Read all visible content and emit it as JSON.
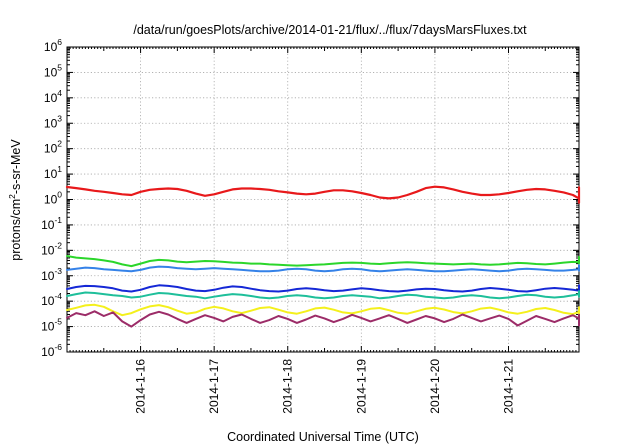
{
  "chart_data": {
    "type": "line",
    "title": "/data/run/goesPlots/archive/2014-01-21/flux/../flux/7daysMarsFluxes.txt",
    "xlabel": "Coordinated Universal Time (UTC)",
    "ylabel_main": "protons/cm",
    "ylabel_sup": "2",
    "ylabel_rest": "-s-sr-MeV",
    "y_scale": "log",
    "ylim": [
      1e-06,
      1000000.0
    ],
    "y_ticks": [
      {
        "base": "10",
        "exp": "-6"
      },
      {
        "base": "10",
        "exp": "-5"
      },
      {
        "base": "10",
        "exp": "-4"
      },
      {
        "base": "10",
        "exp": "-3"
      },
      {
        "base": "10",
        "exp": "-2"
      },
      {
        "base": "10",
        "exp": "-1"
      },
      {
        "base": "10",
        "exp": "0"
      },
      {
        "base": "10",
        "exp": "1"
      },
      {
        "base": "10",
        "exp": "2"
      },
      {
        "base": "10",
        "exp": "3"
      },
      {
        "base": "10",
        "exp": "4"
      },
      {
        "base": "10",
        "exp": "5"
      },
      {
        "base": "10",
        "exp": "6"
      }
    ],
    "xlim": [
      "2014-01-15 00:00",
      "2014-01-21 23:00"
    ],
    "x_ticks": [
      "2014-1-16",
      "2014-1-17",
      "2014-1-18",
      "2014-1-19",
      "2014-1-20",
      "2014-1-21"
    ],
    "grid": true,
    "legend": "none",
    "series": [
      {
        "color": "#e8191b",
        "x_start": "2014-01-15 00:00",
        "step_hours": 3,
        "values": [
          3.1,
          2.8,
          2.5,
          2.2,
          2.0,
          1.8,
          1.6,
          1.5,
          2.0,
          2.4,
          2.6,
          2.7,
          2.6,
          2.2,
          1.7,
          1.4,
          1.6,
          2.0,
          2.5,
          2.7,
          2.7,
          2.6,
          2.4,
          2.1,
          1.9,
          1.7,
          1.6,
          1.7,
          2.0,
          2.3,
          2.3,
          2.1,
          1.8,
          1.5,
          1.2,
          1.1,
          1.2,
          1.5,
          2.0,
          2.8,
          3.2,
          3.0,
          2.5,
          2.0,
          1.7,
          1.5,
          1.5,
          1.6,
          1.8,
          2.1,
          2.4,
          2.6,
          2.5,
          2.2,
          1.9,
          1.5,
          1.1,
          1.0,
          1.3,
          1.8,
          2.3,
          2.7,
          3.0,
          2.8,
          2.2,
          1.6,
          1.2,
          0.9,
          0.75,
          0.8,
          1.0,
          1.4,
          1.8,
          1.8
        ]
      },
      {
        "color": "#2bd62b",
        "x_start": "2014-01-15 00:00",
        "step_hours": 3,
        "values": [
          0.006,
          0.0052,
          0.0048,
          0.0045,
          0.004,
          0.0035,
          0.0028,
          0.0024,
          0.003,
          0.0038,
          0.0042,
          0.004,
          0.0036,
          0.0034,
          0.0036,
          0.0038,
          0.0037,
          0.0035,
          0.0033,
          0.0032,
          0.003,
          0.003,
          0.0028,
          0.0027,
          0.0026,
          0.0025,
          0.0026,
          0.0027,
          0.0028,
          0.003,
          0.0032,
          0.0033,
          0.0032,
          0.003,
          0.0029,
          0.0031,
          0.0033,
          0.0034,
          0.0033,
          0.0031,
          0.003,
          0.0029,
          0.0028,
          0.0029,
          0.003,
          0.0028,
          0.0027,
          0.0028,
          0.003,
          0.0032,
          0.0031,
          0.0029,
          0.0028,
          0.003,
          0.0033,
          0.0035,
          0.0034,
          0.0032,
          0.0031,
          0.0033,
          0.0036,
          0.0038,
          0.0037,
          0.0035,
          0.0036,
          0.0039,
          0.0041,
          0.004,
          0.0038,
          0.004,
          0.0045,
          0.0052,
          0.0055,
          0.0053
        ]
      },
      {
        "color": "#3582e8",
        "x_start": "2014-01-15 00:00",
        "step_hours": 3,
        "values": [
          0.0017,
          0.0019,
          0.0021,
          0.002,
          0.0018,
          0.0017,
          0.0016,
          0.0015,
          0.0017,
          0.0021,
          0.0023,
          0.0022,
          0.002,
          0.0019,
          0.0018,
          0.0019,
          0.002,
          0.0019,
          0.0018,
          0.0017,
          0.0016,
          0.0015,
          0.0015,
          0.0016,
          0.0018,
          0.0019,
          0.0018,
          0.0016,
          0.0015,
          0.0016,
          0.0018,
          0.0019,
          0.0018,
          0.0016,
          0.0015,
          0.0016,
          0.0017,
          0.0018,
          0.0017,
          0.0016,
          0.0015,
          0.0015,
          0.0016,
          0.0017,
          0.0018,
          0.0017,
          0.0016,
          0.0015,
          0.0016,
          0.0018,
          0.0019,
          0.0018,
          0.0017,
          0.0016,
          0.0016,
          0.0017,
          0.0018,
          0.0017,
          0.0016,
          0.0017,
          0.0019,
          0.0021,
          0.002,
          0.0018,
          0.0018,
          0.0019,
          0.0021,
          0.0022,
          0.002,
          0.0019,
          0.0021,
          0.0024,
          0.0026,
          0.0025
        ]
      },
      {
        "color": "#1528d6",
        "x_start": "2014-01-15 00:00",
        "step_hours": 3,
        "values": [
          0.0003,
          0.00036,
          0.0004,
          0.00039,
          0.00036,
          0.00032,
          0.00026,
          0.00024,
          0.00028,
          0.00036,
          0.00042,
          0.0004,
          0.00036,
          0.0003,
          0.00026,
          0.00025,
          0.00028,
          0.00034,
          0.00038,
          0.00036,
          0.00031,
          0.00027,
          0.00025,
          0.00024,
          0.00026,
          0.0003,
          0.00032,
          0.0003,
          0.00027,
          0.00025,
          0.00026,
          0.00029,
          0.00032,
          0.0003,
          0.00027,
          0.00025,
          0.00024,
          0.00026,
          0.00029,
          0.00031,
          0.0003,
          0.00027,
          0.00025,
          0.00024,
          0.00026,
          0.0003,
          0.00033,
          0.00031,
          0.00028,
          0.00025,
          0.00024,
          0.00027,
          0.00031,
          0.00033,
          0.00031,
          0.00028,
          0.00026,
          0.00025,
          0.00027,
          0.00031,
          0.00035,
          0.00038,
          0.00036,
          0.00032,
          0.00029,
          0.00031,
          0.00036,
          0.0004,
          0.00038,
          0.00034,
          0.00033,
          0.00037,
          0.00042,
          0.0004
        ]
      },
      {
        "color": "#1ebf9a",
        "x_start": "2014-01-15 00:00",
        "step_hours": 3,
        "values": [
          0.00016,
          0.00019,
          0.00022,
          0.00021,
          0.00019,
          0.00017,
          0.00016,
          0.00014,
          0.00015,
          0.00018,
          0.00021,
          0.0002,
          0.00018,
          0.00016,
          0.00015,
          0.00013,
          0.00015,
          0.00017,
          0.00019,
          0.00018,
          0.00016,
          0.00014,
          0.00013,
          0.00014,
          0.00016,
          0.00017,
          0.00016,
          0.00014,
          0.00013,
          0.00014,
          0.00016,
          0.00017,
          0.00016,
          0.00015,
          0.00013,
          0.00014,
          0.00016,
          0.00018,
          0.00017,
          0.00015,
          0.00014,
          0.00013,
          0.00014,
          0.00016,
          0.00017,
          0.00016,
          0.00014,
          0.00013,
          0.00014,
          0.00016,
          0.00018,
          0.00017,
          0.00015,
          0.00014,
          0.00015,
          0.00017,
          0.00019,
          0.00018,
          0.00016,
          0.00015,
          0.00017,
          0.00019,
          0.00021,
          0.0002,
          0.00018,
          0.00017,
          0.00019,
          0.00022,
          0.00023,
          0.00021,
          0.0002,
          0.00022,
          0.00025,
          0.00024
        ]
      },
      {
        "color": "#f4f01c",
        "x_start": "2014-01-15 00:00",
        "step_hours": 3,
        "values": [
          4.5e-05,
          5.5e-05,
          6.8e-05,
          7.2e-05,
          6e-05,
          4e-05,
          2.8e-05,
          3.4e-05,
          4.8e-05,
          6.2e-05,
          7e-05,
          5.8e-05,
          4.2e-05,
          3.2e-05,
          3.6e-05,
          5e-05,
          6e-05,
          5.2e-05,
          4e-05,
          3.4e-05,
          4.2e-05,
          5.4e-05,
          5.8e-05,
          4.6e-05,
          3.6e-05,
          3.2e-05,
          4e-05,
          5.2e-05,
          5.6e-05,
          4.6e-05,
          3.6e-05,
          3.3e-05,
          4e-05,
          5e-05,
          5.4e-05,
          4.4e-05,
          3.5e-05,
          3.2e-05,
          4e-05,
          5e-05,
          5.5e-05,
          4.7e-05,
          3.7e-05,
          3.3e-05,
          4e-05,
          5.1e-05,
          5.6e-05,
          4.6e-05,
          3.6e-05,
          3.2e-05,
          3.8e-05,
          4.9e-05,
          5.4e-05,
          4.5e-05,
          3.5e-05,
          3.1e-05,
          3.8e-05,
          4.9e-05,
          5.5e-05,
          4.8e-05,
          3.8e-05,
          3.4e-05,
          4.2e-05,
          5.3e-05,
          5.8e-05,
          4.7e-05,
          3.5e-05,
          3e-05,
          3.4e-05,
          4.2e-05,
          4.6e-05,
          4e-05,
          3.6e-05,
          3.8e-05
        ]
      },
      {
        "color": "#9c2c68",
        "x_start": "2014-01-15 00:00",
        "step_hours": 3,
        "values": [
          2.2e-05,
          3.4e-05,
          2.8e-05,
          4e-05,
          2.6e-05,
          3.6e-05,
          1.6e-05,
          1e-05,
          1.8e-05,
          3e-05,
          3.8e-05,
          3e-05,
          2e-05,
          1.4e-05,
          2e-05,
          2.8e-05,
          2.2e-05,
          1.6e-05,
          2.4e-05,
          3e-05,
          2e-05,
          1.4e-05,
          1.8e-05,
          2.6e-05,
          2e-05,
          1.4e-05,
          1.9e-05,
          2.7e-05,
          2.1e-05,
          1.5e-05,
          2e-05,
          2.9e-05,
          2.2e-05,
          1.6e-05,
          2.1e-05,
          2.8e-05,
          2e-05,
          1.4e-05,
          1.9e-05,
          2.6e-05,
          2.1e-05,
          1.5e-05,
          2e-05,
          3e-05,
          2.2e-05,
          1.6e-05,
          2.1e-05,
          2.7e-05,
          2e-05,
          1.1e-05,
          1.7e-05,
          2.6e-05,
          2e-05,
          1.5e-05,
          2.1e-05,
          2.8e-05,
          2.1e-05,
          1.5e-05,
          2e-05,
          2.9e-05,
          2.2e-05,
          1.6e-05,
          2.1e-05,
          2.7e-05,
          2e-05,
          1.4e-05,
          1.9e-05,
          2.6e-05,
          2e-05,
          1.4e-05,
          1.1e-05,
          1.3e-05,
          1.1e-05,
          1.3e-05
        ]
      }
    ]
  }
}
